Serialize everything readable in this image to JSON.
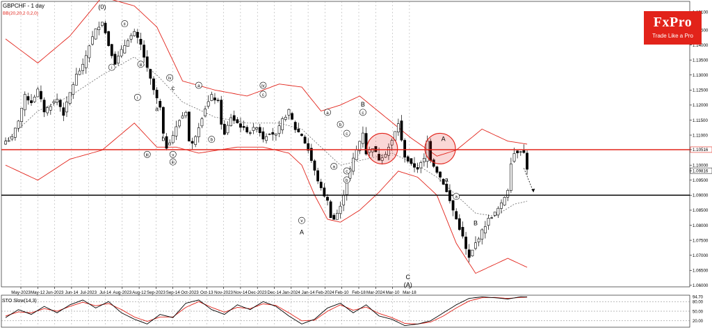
{
  "header": {
    "symbol": "GBPCHF - 1 day",
    "indicator": "BB(20,20,2 0,2,0)"
  },
  "logo": {
    "brand": "FxPro",
    "tagline": "Trade Like a Pro"
  },
  "colors": {
    "bollinger": "#e2231a",
    "resistance": "#e2231a",
    "support": "#000000",
    "candle_up": "#ffffff",
    "candle_down": "#000000",
    "grid": "#a0a0a0"
  },
  "chart_data": {
    "type": "candlestick",
    "title": "GBPCHF - 1 day",
    "y_range": [
      1.0595,
      1.1545
    ],
    "y_ticks": [
      "1.15100",
      "1.14500",
      "1.14000",
      "1.13500",
      "1.13000",
      "1.12500",
      "1.12000",
      "1.11500",
      "1.11000",
      "1.10516",
      "1.10000",
      "1.09816",
      "1.09500",
      "1.09000",
      "1.08500",
      "1.08000",
      "1.07500",
      "1.07000",
      "1.06500",
      "1.06000"
    ],
    "current_price": "1.09816",
    "x_ticks": [
      "May-2023",
      "May-12",
      "Jun-2023",
      "Jun-14",
      "Jul-2023",
      "Jul-14",
      "Aug-2023",
      "Aug-12",
      "Sep-2023",
      "Sep-14",
      "Oct-2023",
      "Oct-13",
      "Nov-2023",
      "Nov-14",
      "Dec-2023",
      "Dec-14",
      "Jan-2024",
      "Jan-14",
      "Feb-2024",
      "Feb-10",
      "Feb-18",
      "Mar-2024",
      "Mar-10",
      "Mar-18"
    ],
    "levels": [
      {
        "name": "resistance",
        "value": 1.10516
      },
      {
        "name": "support",
        "value": 1.09
      }
    ],
    "price_path": [
      [
        0,
        1.108
      ],
      [
        2,
        1.109
      ],
      [
        4,
        1.115
      ],
      [
        6,
        1.123
      ],
      [
        8,
        1.121
      ],
      [
        10,
        1.125
      ],
      [
        12,
        1.118
      ],
      [
        14,
        1.12
      ],
      [
        16,
        1.122
      ],
      [
        18,
        1.117
      ],
      [
        20,
        1.124
      ],
      [
        22,
        1.13
      ],
      [
        24,
        1.133
      ],
      [
        26,
        1.14
      ],
      [
        28,
        1.145
      ],
      [
        30,
        1.148
      ],
      [
        32,
        1.14
      ],
      [
        34,
        1.134
      ],
      [
        36,
        1.138
      ],
      [
        38,
        1.142
      ],
      [
        40,
        1.144
      ],
      [
        42,
        1.14
      ],
      [
        44,
        1.132
      ],
      [
        46,
        1.125
      ],
      [
        48,
        1.119
      ],
      [
        49,
        1.11
      ],
      [
        50,
        1.106
      ],
      [
        52,
        1.11
      ],
      [
        54,
        1.115
      ],
      [
        56,
        1.118
      ],
      [
        57,
        1.108
      ],
      [
        58,
        1.107
      ],
      [
        60,
        1.113
      ],
      [
        62,
        1.119
      ],
      [
        64,
        1.123
      ],
      [
        66,
        1.121
      ],
      [
        67,
        1.114
      ],
      [
        68,
        1.11
      ],
      [
        70,
        1.116
      ],
      [
        72,
        1.114
      ],
      [
        74,
        1.112
      ],
      [
        76,
        1.111
      ],
      [
        78,
        1.113
      ],
      [
        80,
        1.109
      ],
      [
        82,
        1.111
      ],
      [
        84,
        1.11
      ],
      [
        86,
        1.115
      ],
      [
        88,
        1.118
      ],
      [
        90,
        1.112
      ],
      [
        92,
        1.11
      ],
      [
        94,
        1.105
      ],
      [
        96,
        1.098
      ],
      [
        98,
        1.092
      ],
      [
        100,
        1.088
      ],
      [
        101,
        1.083
      ],
      [
        102,
        1.082
      ],
      [
        104,
        1.086
      ],
      [
        106,
        1.095
      ],
      [
        108,
        1.102
      ],
      [
        110,
        1.108
      ],
      [
        111,
        1.111
      ],
      [
        112,
        1.104
      ],
      [
        114,
        1.106
      ],
      [
        116,
        1.102
      ],
      [
        118,
        1.104
      ],
      [
        120,
        1.108
      ],
      [
        122,
        1.114
      ],
      [
        123,
        1.108
      ],
      [
        124,
        1.103
      ],
      [
        126,
        1.1
      ],
      [
        128,
        1.099
      ],
      [
        130,
        1.102
      ],
      [
        131,
        1.108
      ],
      [
        132,
        1.102
      ],
      [
        134,
        1.098
      ],
      [
        136,
        1.094
      ],
      [
        138,
        1.088
      ],
      [
        140,
        1.082
      ],
      [
        142,
        1.076
      ],
      [
        143,
        1.072
      ],
      [
        144,
        1.069
      ],
      [
        146,
        1.074
      ],
      [
        148,
        1.078
      ],
      [
        150,
        1.082
      ],
      [
        152,
        1.084
      ],
      [
        154,
        1.087
      ],
      [
        156,
        1.092
      ],
      [
        157,
        1.101
      ],
      [
        158,
        1.104
      ],
      [
        160,
        1.105
      ],
      [
        161,
        1.104
      ],
      [
        162,
        1.099
      ]
    ],
    "bb_upper": [
      [
        0,
        1.142
      ],
      [
        10,
        1.134
      ],
      [
        20,
        1.143
      ],
      [
        30,
        1.156
      ],
      [
        40,
        1.153
      ],
      [
        47,
        1.146
      ],
      [
        55,
        1.128
      ],
      [
        65,
        1.125
      ],
      [
        75,
        1.123
      ],
      [
        85,
        1.127
      ],
      [
        92,
        1.126
      ],
      [
        98,
        1.118
      ],
      [
        104,
        1.12
      ],
      [
        110,
        1.123
      ],
      [
        118,
        1.116
      ],
      [
        126,
        1.109
      ],
      [
        134,
        1.103
      ],
      [
        140,
        1.105
      ],
      [
        148,
        1.112
      ],
      [
        152,
        1.11
      ],
      [
        156,
        1.108
      ],
      [
        162,
        1.107
      ]
    ],
    "bb_middle": [
      [
        0,
        1.108
      ],
      [
        10,
        1.118
      ],
      [
        20,
        1.123
      ],
      [
        30,
        1.13
      ],
      [
        40,
        1.136
      ],
      [
        47,
        1.13
      ],
      [
        55,
        1.121
      ],
      [
        65,
        1.116
      ],
      [
        75,
        1.114
      ],
      [
        85,
        1.114
      ],
      [
        92,
        1.112
      ],
      [
        98,
        1.106
      ],
      [
        104,
        1.1
      ],
      [
        112,
        1.102
      ],
      [
        120,
        1.104
      ],
      [
        128,
        1.1
      ],
      [
        134,
        1.096
      ],
      [
        140,
        1.09
      ],
      [
        146,
        1.084
      ],
      [
        152,
        1.083
      ],
      [
        158,
        1.087
      ],
      [
        162,
        1.088
      ]
    ],
    "bb_lower": [
      [
        0,
        1.1
      ],
      [
        10,
        1.095
      ],
      [
        20,
        1.102
      ],
      [
        30,
        1.105
      ],
      [
        40,
        1.114
      ],
      [
        47,
        1.106
      ],
      [
        53,
        1.106
      ],
      [
        60,
        1.104
      ],
      [
        66,
        1.105
      ],
      [
        72,
        1.106
      ],
      [
        80,
        1.106
      ],
      [
        88,
        1.104
      ],
      [
        92,
        1.1
      ],
      [
        96,
        1.09
      ],
      [
        100,
        1.082
      ],
      [
        104,
        1.081
      ],
      [
        110,
        1.085
      ],
      [
        116,
        1.091
      ],
      [
        122,
        1.098
      ],
      [
        128,
        1.096
      ],
      [
        134,
        1.09
      ],
      [
        140,
        1.074
      ],
      [
        146,
        1.064
      ],
      [
        150,
        1.066
      ],
      [
        156,
        1.069
      ],
      [
        162,
        1.066
      ]
    ],
    "projection": [
      [
        161,
        1.099
      ],
      [
        164,
        1.091
      ]
    ],
    "wave_labels": [
      {
        "text": "(0)",
        "i": 30,
        "price": 1.152,
        "circled": false
      },
      {
        "text": "ii",
        "i": 37,
        "price": 1.1465,
        "circled": true
      },
      {
        "text": "i",
        "i": 33,
        "price": 1.132,
        "circled": true
      },
      {
        "text": "iii",
        "i": 42,
        "price": 1.133,
        "circled": true
      },
      {
        "text": "i",
        "i": 41,
        "price": 1.122,
        "circled": true
      },
      {
        "text": "iii",
        "i": 44,
        "price": 1.103,
        "circled": true
      },
      {
        "text": "a",
        "i": 47,
        "price": 1.118,
        "circled": false
      },
      {
        "text": "b",
        "i": 49,
        "price": 1.108,
        "circled": false
      },
      {
        "text": "c",
        "i": 52,
        "price": 1.125,
        "circled": false
      },
      {
        "text": "iv",
        "i": 51,
        "price": 1.1285,
        "circled": true
      },
      {
        "text": "v",
        "i": 52,
        "price": 1.103,
        "circled": true
      },
      {
        "text": "iii",
        "i": 52,
        "price": 1.1005,
        "circled": true
      },
      {
        "text": "a",
        "i": 60,
        "price": 1.126,
        "circled": true
      },
      {
        "text": "b",
        "i": 64,
        "price": 1.108,
        "circled": true
      },
      {
        "text": "iv",
        "i": 80,
        "price": 1.126,
        "circled": true
      },
      {
        "text": "c",
        "i": 80,
        "price": 1.123,
        "circled": true
      },
      {
        "text": "v",
        "i": 92,
        "price": 1.081,
        "circled": true
      },
      {
        "text": "A",
        "i": 92,
        "price": 1.077,
        "circled": false
      },
      {
        "text": "a",
        "i": 100,
        "price": 1.117,
        "circled": true
      },
      {
        "text": "b",
        "i": 104,
        "price": 1.113,
        "circled": true
      },
      {
        "text": "a",
        "i": 102,
        "price": 1.099,
        "circled": true
      },
      {
        "text": "c",
        "i": 106,
        "price": 1.11,
        "circled": true
      },
      {
        "text": "c",
        "i": 106,
        "price": 1.0975,
        "circled": true
      },
      {
        "text": "b",
        "i": 106,
        "price": 1.0945,
        "circled": true
      },
      {
        "text": "B",
        "i": 111,
        "price": 1.1195,
        "circled": false
      },
      {
        "text": "c",
        "i": 111,
        "price": 1.117,
        "circled": true
      },
      {
        "text": "C",
        "i": 125,
        "price": 1.062,
        "circled": false
      },
      {
        "text": "(A)",
        "i": 125,
        "price": 1.0595,
        "circled": false
      },
      {
        "text": "A",
        "i": 136,
        "price": 1.108,
        "circled": false
      },
      {
        "text": "a",
        "i": 137,
        "price": 1.0945,
        "circled": false
      },
      {
        "text": "a",
        "i": 140,
        "price": 1.089,
        "circled": true
      },
      {
        "text": "B",
        "i": 146,
        "price": 1.08,
        "circled": false
      }
    ],
    "highlight_circles": [
      {
        "i": 117,
        "price": 1.1055
      },
      {
        "i": 135,
        "price": 1.1055
      }
    ],
    "oscillator": {
      "title": "STO Slow(14,3)",
      "y_range": [
        0,
        100
      ],
      "ticks": [
        "94.70",
        "80.00",
        "50.00",
        "20.00"
      ],
      "levels": [
        80,
        50,
        20
      ],
      "k": [
        [
          0,
          30
        ],
        [
          4,
          55
        ],
        [
          8,
          40
        ],
        [
          12,
          65
        ],
        [
          16,
          45
        ],
        [
          20,
          70
        ],
        [
          24,
          85
        ],
        [
          28,
          60
        ],
        [
          32,
          80
        ],
        [
          36,
          45
        ],
        [
          40,
          25
        ],
        [
          44,
          10
        ],
        [
          48,
          40
        ],
        [
          52,
          30
        ],
        [
          56,
          75
        ],
        [
          60,
          85
        ],
        [
          64,
          55
        ],
        [
          68,
          40
        ],
        [
          72,
          70
        ],
        [
          76,
          55
        ],
        [
          80,
          80
        ],
        [
          84,
          65
        ],
        [
          88,
          35
        ],
        [
          92,
          10
        ],
        [
          96,
          25
        ],
        [
          100,
          60
        ],
        [
          104,
          75
        ],
        [
          108,
          45
        ],
        [
          112,
          70
        ],
        [
          116,
          35
        ],
        [
          120,
          25
        ],
        [
          124,
          5
        ],
        [
          128,
          10
        ],
        [
          132,
          20
        ],
        [
          136,
          45
        ],
        [
          140,
          70
        ],
        [
          144,
          90
        ],
        [
          148,
          94.7
        ],
        [
          152,
          92
        ],
        [
          156,
          88
        ],
        [
          160,
          95
        ],
        [
          162,
          94.7
        ]
      ],
      "d": [
        [
          0,
          35
        ],
        [
          4,
          48
        ],
        [
          8,
          45
        ],
        [
          12,
          58
        ],
        [
          16,
          50
        ],
        [
          20,
          65
        ],
        [
          24,
          78
        ],
        [
          28,
          67
        ],
        [
          32,
          74
        ],
        [
          36,
          55
        ],
        [
          40,
          32
        ],
        [
          44,
          18
        ],
        [
          48,
          32
        ],
        [
          52,
          32
        ],
        [
          56,
          62
        ],
        [
          60,
          80
        ],
        [
          64,
          62
        ],
        [
          68,
          47
        ],
        [
          72,
          62
        ],
        [
          76,
          58
        ],
        [
          80,
          73
        ],
        [
          84,
          68
        ],
        [
          88,
          45
        ],
        [
          92,
          20
        ],
        [
          96,
          22
        ],
        [
          100,
          50
        ],
        [
          104,
          70
        ],
        [
          108,
          53
        ],
        [
          112,
          63
        ],
        [
          116,
          43
        ],
        [
          120,
          30
        ],
        [
          124,
          12
        ],
        [
          128,
          10
        ],
        [
          132,
          16
        ],
        [
          136,
          35
        ],
        [
          140,
          60
        ],
        [
          144,
          82
        ],
        [
          148,
          92
        ],
        [
          152,
          93
        ],
        [
          156,
          90
        ],
        [
          160,
          93
        ],
        [
          162,
          94
        ]
      ]
    }
  }
}
